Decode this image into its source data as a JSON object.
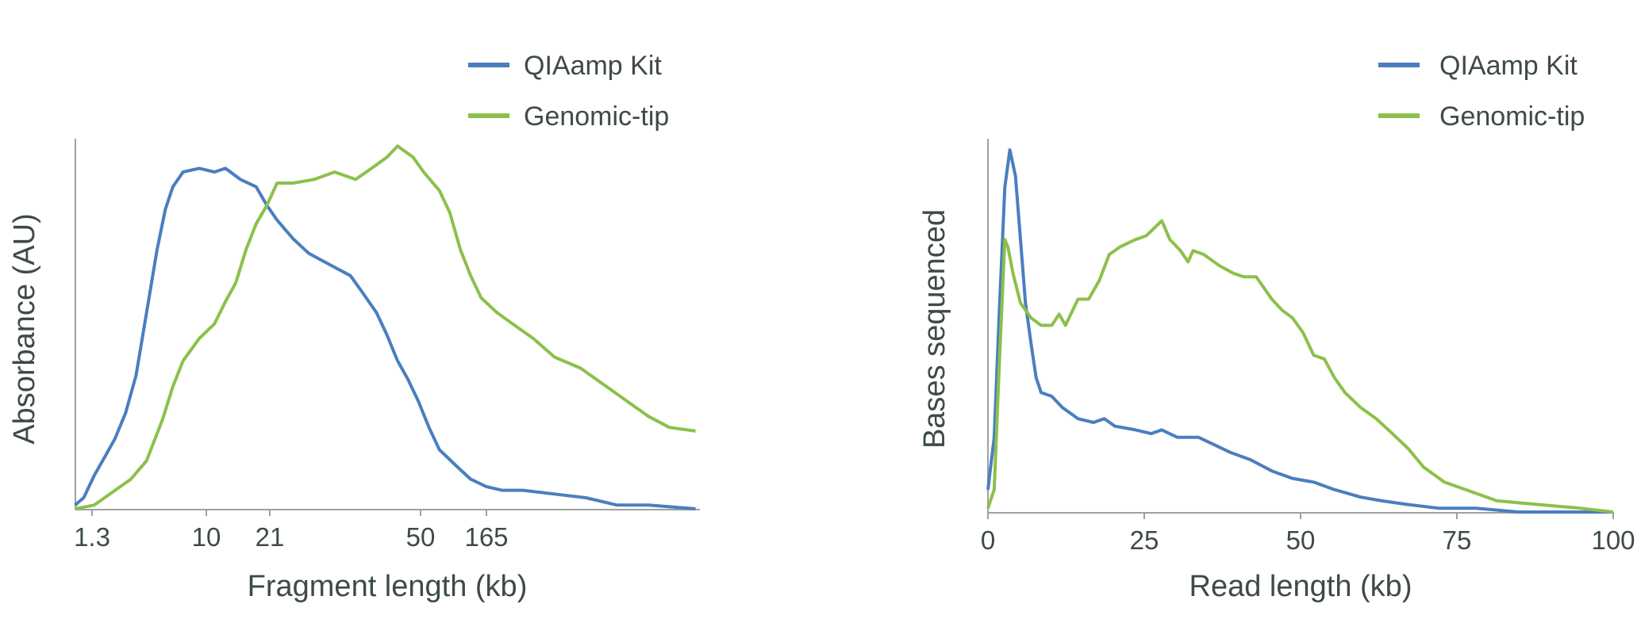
{
  "colors": {
    "QIAamp Kit": "#4a7ebf",
    "Genomic-tip": "#8cc04b",
    "axis": "#a0a0a0",
    "text": "#3e4a4a"
  },
  "chart_data": [
    {
      "type": "line",
      "xlabel": "Fragment length (kb)",
      "ylabel": "Absorbance (AU)",
      "x_ticks": [
        "1.3",
        "10",
        "21",
        "50",
        "165"
      ],
      "x_scale": "nonlinear (sizing ladder)",
      "y_ticks": [],
      "grid": false,
      "legend": {
        "position": "top-right",
        "entries": [
          "QIAamp Kit",
          "Genomic-tip"
        ]
      },
      "series": [
        {
          "name": "QIAamp Kit",
          "x": [
            0.96,
            1.12,
            1.35,
            1.63,
            1.96,
            2.37,
            2.85,
            3.44,
            4.15,
            4.82,
            5.5,
            6.6,
            8.8,
            11.0,
            12.5,
            14.9,
            17.9,
            20.3,
            21.9,
            24.0,
            26.3,
            29.6,
            33.4,
            35.5,
            38.8,
            41.2,
            43.8,
            46.5,
            49.4,
            58.2,
            70.3,
            93,
            124,
            165,
            219,
            320,
            566,
            1000,
            1760,
            3110,
            7310
          ],
          "y": [
            0.01,
            0.03,
            0.09,
            0.14,
            0.19,
            0.26,
            0.36,
            0.53,
            0.7,
            0.81,
            0.87,
            0.91,
            0.92,
            0.91,
            0.92,
            0.89,
            0.87,
            0.82,
            0.78,
            0.73,
            0.69,
            0.66,
            0.63,
            0.59,
            0.53,
            0.47,
            0.4,
            0.35,
            0.29,
            0.22,
            0.16,
            0.12,
            0.08,
            0.06,
            0.05,
            0.05,
            0.04,
            0.03,
            0.01,
            0.01,
            0.0
          ]
        },
        {
          "name": "Genomic-tip",
          "x": [
            0.96,
            1.35,
            1.96,
            2.6,
            3.44,
            4.56,
            5.5,
            6.6,
            8.8,
            11.0,
            12.5,
            14.1,
            15.9,
            17.9,
            20.3,
            21.9,
            24.0,
            27.1,
            30.5,
            34.4,
            37.7,
            41.2,
            43.8,
            47.9,
            52.9,
            70.3,
            85,
            103,
            124,
            150,
            200,
            265,
            387,
            566,
            909,
            1460,
            2130,
            3110,
            4550,
            7310
          ],
          "y": [
            0.0,
            0.01,
            0.05,
            0.08,
            0.13,
            0.24,
            0.33,
            0.4,
            0.46,
            0.5,
            0.56,
            0.61,
            0.7,
            0.77,
            0.82,
            0.88,
            0.88,
            0.89,
            0.91,
            0.89,
            0.92,
            0.95,
            0.98,
            0.95,
            0.91,
            0.86,
            0.8,
            0.7,
            0.63,
            0.57,
            0.53,
            0.5,
            0.46,
            0.41,
            0.38,
            0.33,
            0.29,
            0.25,
            0.22,
            0.21
          ]
        }
      ]
    },
    {
      "type": "line",
      "xlabel": "Read length (kb)",
      "ylabel": "Bases sequenced",
      "x_ticks": [
        "0",
        "25",
        "50",
        "75",
        "100"
      ],
      "xlim": [
        0,
        100
      ],
      "y_ticks": [],
      "grid": false,
      "legend": {
        "position": "top-right",
        "entries": [
          "QIAamp Kit",
          "Genomic-tip"
        ]
      },
      "series": [
        {
          "name": "QIAamp Kit",
          "x": [
            0,
            1.0,
            1.8,
            2.7,
            3.5,
            4.4,
            5.2,
            6.0,
            6.9,
            7.7,
            8.5,
            10.2,
            11.9,
            14.4,
            16.9,
            18.6,
            20.3,
            23.6,
            26.1,
            27.8,
            30.3,
            33.7,
            36.2,
            38.7,
            42.0,
            45.4,
            48.7,
            52.1,
            55.4,
            59.6,
            63.0,
            67.2,
            72.2,
            78.1,
            84.8,
            93.1,
            100
          ],
          "y": [
            0.06,
            0.2,
            0.53,
            0.87,
            0.97,
            0.9,
            0.73,
            0.56,
            0.45,
            0.36,
            0.32,
            0.31,
            0.28,
            0.25,
            0.24,
            0.25,
            0.23,
            0.22,
            0.21,
            0.22,
            0.2,
            0.2,
            0.18,
            0.16,
            0.14,
            0.11,
            0.09,
            0.08,
            0.06,
            0.04,
            0.03,
            0.02,
            0.01,
            0.01,
            0,
            0,
            0
          ]
        },
        {
          "name": "Genomic-tip",
          "x": [
            0,
            1.0,
            1.8,
            2.7,
            3.2,
            4.0,
            5.2,
            6.9,
            8.5,
            10.2,
            11.4,
            12.4,
            14.4,
            16.1,
            17.8,
            19.4,
            21.1,
            23.6,
            25.3,
            27.8,
            29.1,
            30.8,
            32.0,
            32.8,
            34.5,
            37.0,
            39.2,
            40.9,
            42.9,
            45.4,
            47.1,
            48.7,
            50.4,
            52.1,
            53.8,
            55.4,
            57.1,
            59.6,
            62.1,
            64.7,
            67.2,
            69.7,
            73.0,
            76.4,
            81.4,
            88.1,
            94.8,
            100
          ],
          "y": [
            0.01,
            0.06,
            0.39,
            0.73,
            0.71,
            0.64,
            0.56,
            0.52,
            0.5,
            0.5,
            0.53,
            0.5,
            0.57,
            0.57,
            0.62,
            0.69,
            0.71,
            0.73,
            0.74,
            0.78,
            0.73,
            0.7,
            0.67,
            0.7,
            0.69,
            0.66,
            0.64,
            0.63,
            0.63,
            0.57,
            0.54,
            0.52,
            0.48,
            0.42,
            0.41,
            0.36,
            0.32,
            0.28,
            0.25,
            0.21,
            0.17,
            0.12,
            0.08,
            0.06,
            0.03,
            0.02,
            0.01,
            0
          ]
        }
      ]
    }
  ]
}
